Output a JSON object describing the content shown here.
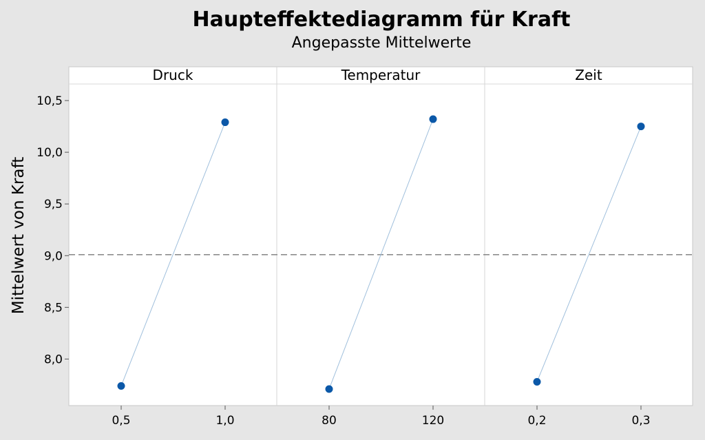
{
  "chart_data": {
    "type": "line",
    "title": "Haupteffektediagramm für Kraft",
    "subtitle": "Angepasste Mittelwerte",
    "ylabel": "Mittelwert von Kraft",
    "ylim": [
      7.55,
      10.66
    ],
    "yticks": [
      "8,0",
      "8,5",
      "9,0",
      "9,5",
      "10,0",
      "10,5"
    ],
    "ytick_values": [
      8.0,
      8.5,
      9.0,
      9.5,
      10.0,
      10.5
    ],
    "reference_line": 9.01,
    "grid": false,
    "colors": {
      "point": "#0b58a8",
      "line": "#9fbfdc",
      "reference": "#8c8c8c"
    },
    "panels": [
      {
        "name": "Druck",
        "x_labels": [
          "0,5",
          "1,0"
        ],
        "values": [
          7.74,
          10.29
        ]
      },
      {
        "name": "Temperatur",
        "x_labels": [
          "80",
          "120"
        ],
        "values": [
          7.71,
          10.32
        ]
      },
      {
        "name": "Zeit",
        "x_labels": [
          "0,2",
          "0,3"
        ],
        "values": [
          7.78,
          10.25
        ]
      }
    ]
  }
}
